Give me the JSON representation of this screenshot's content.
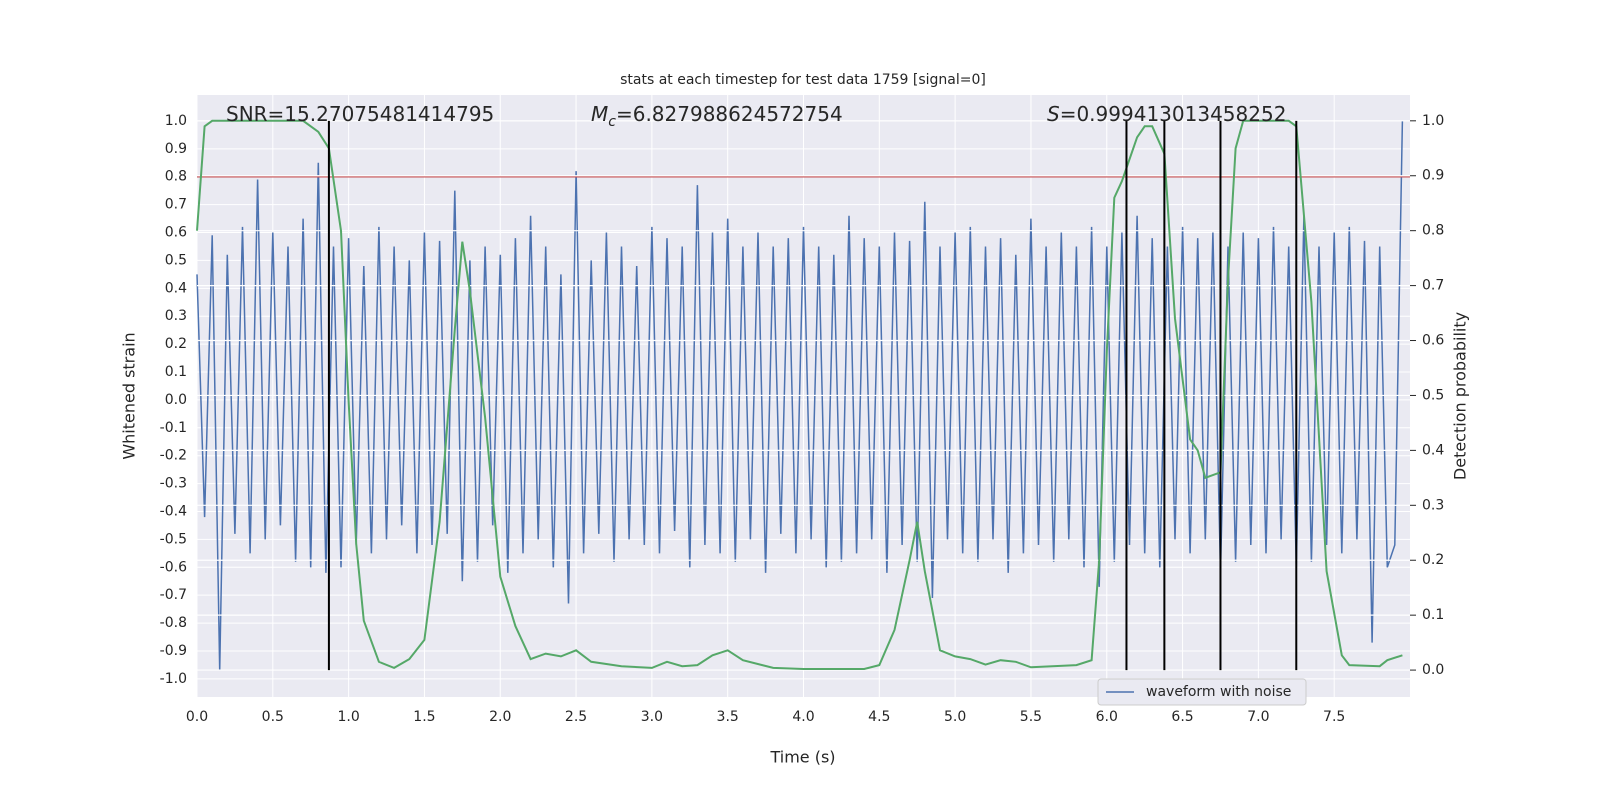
{
  "chart_data": {
    "type": "line",
    "title": "stats at each timestep for test data 1759 [signal=0]",
    "xlabel": "Time (s)",
    "ylabel": "Whitened strain",
    "y2label": "Detection probability",
    "annotations": [
      {
        "text": "SNR=15.27075481414795"
      },
      {
        "italic": "M",
        "sub": "c",
        "text": "=6.827988624572754"
      },
      {
        "italic": "S",
        "text": "=0.999413013458252"
      }
    ],
    "xlim": [
      0,
      8
    ],
    "ylim": [
      -1.065,
      1.093
    ],
    "y2lim": [
      -0.049,
      1.047
    ],
    "xticks": [
      {
        "value": 0,
        "label": "0.0"
      },
      0.5,
      {
        "value": 1,
        "label": "1.0"
      },
      1.5,
      {
        "value": 2,
        "label": "2.0"
      },
      2.5,
      {
        "value": 3,
        "label": "3.0"
      },
      3.5,
      {
        "value": 4,
        "label": "4.0"
      },
      4.5,
      {
        "value": 5,
        "label": "5.0"
      },
      5.5,
      {
        "value": 6,
        "label": "6.0"
      },
      6.5,
      {
        "value": 7,
        "label": "7.0"
      },
      7.5
    ],
    "yticks": [
      {
        "value": 1,
        "label": "1.0"
      },
      0.9,
      0.8,
      0.7,
      0.6,
      0.5,
      0.4,
      0.3,
      0.2,
      0.1,
      {
        "value": 0,
        "label": "0.0"
      },
      -0.1,
      -0.2,
      -0.3,
      -0.4,
      -0.5,
      -0.6,
      -0.7,
      -0.8,
      -0.9,
      {
        "value": -1,
        "label": "-1.0"
      }
    ],
    "y2ticks": [
      {
        "value": 1,
        "label": "1.0"
      },
      0.9,
      0.8,
      0.7,
      0.6,
      0.5,
      0.4,
      0.3,
      0.2,
      0.1,
      {
        "value": 0,
        "label": "0.0"
      }
    ],
    "grid": true,
    "legend": "lower right",
    "threshold": 0.8,
    "threshold_color": "#c44e52",
    "vlines": [
      0.87,
      6.13,
      6.38,
      6.75,
      7.25
    ],
    "vline_color": "#000000",
    "series": [
      {
        "name": "waveform with noise",
        "color": "#4c72b0",
        "x": [
          0,
          0.05,
          0.1,
          0.15,
          0.2,
          0.25,
          0.3,
          0.35,
          0.4,
          0.45,
          0.5,
          0.55,
          0.6,
          0.65,
          0.7,
          0.75,
          0.8,
          0.85,
          0.9,
          0.95,
          1,
          1.05,
          1.1,
          1.15,
          1.2,
          1.25,
          1.3,
          1.35,
          1.4,
          1.45,
          1.5,
          1.55,
          1.6,
          1.65,
          1.7,
          1.75,
          1.8,
          1.85,
          1.9,
          1.95,
          2,
          2.05,
          2.1,
          2.15,
          2.2,
          2.25,
          2.3,
          2.35,
          2.4,
          2.45,
          2.5,
          2.55,
          2.6,
          2.65,
          2.7,
          2.75,
          2.8,
          2.85,
          2.9,
          2.95,
          3,
          3.05,
          3.1,
          3.15,
          3.2,
          3.25,
          3.3,
          3.35,
          3.4,
          3.45,
          3.5,
          3.55,
          3.6,
          3.65,
          3.7,
          3.75,
          3.8,
          3.85,
          3.9,
          3.95,
          4,
          4.05,
          4.1,
          4.15,
          4.2,
          4.25,
          4.3,
          4.35,
          4.4,
          4.45,
          4.5,
          4.55,
          4.6,
          4.65,
          4.7,
          4.75,
          4.8,
          4.85,
          4.9,
          4.95,
          5,
          5.05,
          5.1,
          5.15,
          5.2,
          5.25,
          5.3,
          5.35,
          5.4,
          5.45,
          5.5,
          5.55,
          5.6,
          5.65,
          5.7,
          5.75,
          5.8,
          5.85,
          5.9,
          5.95,
          6,
          6.05,
          6.1,
          6.15,
          6.2,
          6.25,
          6.3,
          6.35,
          6.4,
          6.45,
          6.5,
          6.55,
          6.6,
          6.65,
          6.7,
          6.75,
          6.8,
          6.85,
          6.9,
          6.95,
          7,
          7.05,
          7.1,
          7.15,
          7.2,
          7.25,
          7.3,
          7.35,
          7.4,
          7.45,
          7.5,
          7.55,
          7.6,
          7.65,
          7.7,
          7.75,
          7.8,
          7.85,
          7.9,
          7.95
        ],
        "values": [
          0.45,
          -0.42,
          0.59,
          -0.97,
          0.52,
          -0.48,
          0.62,
          -0.55,
          0.79,
          -0.5,
          0.6,
          -0.45,
          0.55,
          -0.58,
          0.65,
          -0.6,
          0.85,
          -0.62,
          0.55,
          -0.6,
          0.58,
          -0.52,
          0.48,
          -0.55,
          0.62,
          -0.5,
          0.55,
          -0.45,
          0.5,
          -0.55,
          0.6,
          -0.52,
          0.57,
          -0.48,
          0.75,
          -0.65,
          0.5,
          -0.58,
          0.55,
          -0.45,
          0.52,
          -0.62,
          0.58,
          -0.55,
          0.66,
          -0.5,
          0.55,
          -0.6,
          0.45,
          -0.73,
          0.82,
          -0.55,
          0.5,
          -0.48,
          0.6,
          -0.58,
          0.55,
          -0.5,
          0.48,
          -0.52,
          0.62,
          -0.55,
          0.58,
          -0.47,
          0.55,
          -0.6,
          0.77,
          -0.52,
          0.6,
          -0.55,
          0.65,
          -0.58,
          0.55,
          -0.5,
          0.6,
          -0.62,
          0.55,
          -0.48,
          0.58,
          -0.55,
          0.62,
          -0.5,
          0.55,
          -0.6,
          0.52,
          -0.58,
          0.66,
          -0.55,
          0.58,
          -0.5,
          0.55,
          -0.62,
          0.6,
          -0.52,
          0.57,
          -0.58,
          0.71,
          -0.71,
          0.55,
          -0.5,
          0.6,
          -0.55,
          0.62,
          -0.58,
          0.55,
          -0.5,
          0.58,
          -0.62,
          0.52,
          -0.55,
          0.65,
          -0.52,
          0.55,
          -0.58,
          0.6,
          -0.5,
          0.55,
          -0.6,
          0.62,
          -0.67,
          0.55,
          -0.58,
          0.6,
          -0.52,
          0.66,
          -0.55,
          0.58,
          -0.6,
          0.55,
          -0.5,
          0.62,
          -0.55,
          0.58,
          -0.5,
          0.6,
          -0.62,
          0.55,
          -0.58,
          0.6,
          -0.52,
          0.58,
          -0.55,
          0.62,
          -0.5,
          0.55,
          -0.6,
          0.66,
          -0.58,
          0.55,
          -0.52,
          0.6,
          -0.55,
          0.62,
          -0.5,
          0.57,
          -0.87,
          0.55,
          -0.6,
          -0.52,
          1.0
        ]
      },
      {
        "color": "#55a868",
        "axis": "y2",
        "x": [
          0,
          0.05,
          0.1,
          0.7,
          0.8,
          0.87,
          0.95,
          1,
          1.05,
          1.1,
          1.2,
          1.3,
          1.4,
          1.5,
          1.6,
          1.7,
          1.75,
          1.8,
          1.9,
          2,
          2.1,
          2.2,
          2.3,
          2.4,
          2.5,
          2.6,
          2.8,
          3,
          3.1,
          3.2,
          3.3,
          3.4,
          3.5,
          3.6,
          3.8,
          4,
          4.4,
          4.5,
          4.6,
          4.7,
          4.75,
          4.8,
          4.9,
          5,
          5.1,
          5.2,
          5.3,
          5.4,
          5.5,
          5.8,
          5.9,
          5.95,
          6,
          6.05,
          6.1,
          6.2,
          6.25,
          6.3,
          6.38,
          6.45,
          6.55,
          6.6,
          6.65,
          6.75,
          6.8,
          6.85,
          6.9,
          7.2,
          7.25,
          7.35,
          7.45,
          7.55,
          7.6,
          7.8,
          7.85,
          7.95
        ],
        "values": [
          0.8,
          0.99,
          1.0,
          1.0,
          0.98,
          0.95,
          0.8,
          0.49,
          0.23,
          0.09,
          0.015,
          0.004,
          0.02,
          0.055,
          0.27,
          0.62,
          0.78,
          0.69,
          0.46,
          0.17,
          0.08,
          0.02,
          0.03,
          0.025,
          0.036,
          0.015,
          0.007,
          0.004,
          0.015,
          0.007,
          0.009,
          0.027,
          0.036,
          0.018,
          0.004,
          0.002,
          0.002,
          0.009,
          0.073,
          0.2,
          0.27,
          0.18,
          0.036,
          0.025,
          0.02,
          0.01,
          0.018,
          0.015,
          0.005,
          0.009,
          0.018,
          0.2,
          0.58,
          0.86,
          0.89,
          0.97,
          0.99,
          0.99,
          0.94,
          0.64,
          0.42,
          0.4,
          0.35,
          0.36,
          0.71,
          0.95,
          1.0,
          1.0,
          0.99,
          0.67,
          0.18,
          0.027,
          0.009,
          0.007,
          0.018,
          0.027
        ]
      }
    ]
  }
}
